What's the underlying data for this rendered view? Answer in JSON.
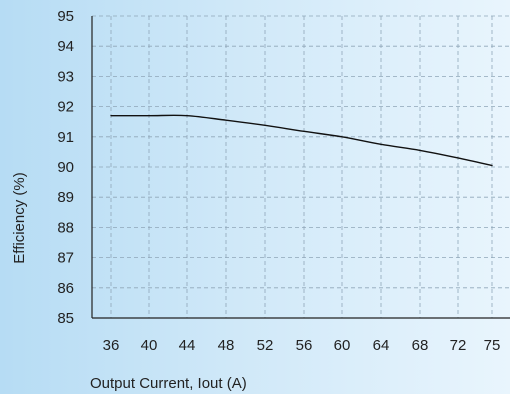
{
  "chart_data": {
    "type": "line",
    "title": "",
    "xlabel": "Output Current, Iout (A)",
    "ylabel": "Efficiency (%)",
    "x_ticks": [
      36,
      40,
      44,
      48,
      52,
      56,
      60,
      64,
      68,
      72,
      75
    ],
    "y_ticks": [
      85,
      86,
      87,
      88,
      89,
      90,
      91,
      92,
      93,
      94,
      95
    ],
    "xlim": [
      36,
      75
    ],
    "ylim": [
      85,
      95
    ],
    "grid": true,
    "legend": "none",
    "series": [
      {
        "x": [
          36,
          40,
          44,
          48,
          52,
          56,
          60,
          64,
          68,
          72,
          75
        ],
        "y": [
          91.7,
          91.7,
          91.7,
          91.55,
          91.38,
          91.18,
          91.0,
          90.75,
          90.55,
          90.3,
          90.05
        ]
      }
    ]
  },
  "colors": {
    "line": "#111111",
    "axis": "#222222",
    "grid": "#8fa6b8",
    "background_left": "#b6dcf4",
    "background_right": "#e9f5fd"
  }
}
